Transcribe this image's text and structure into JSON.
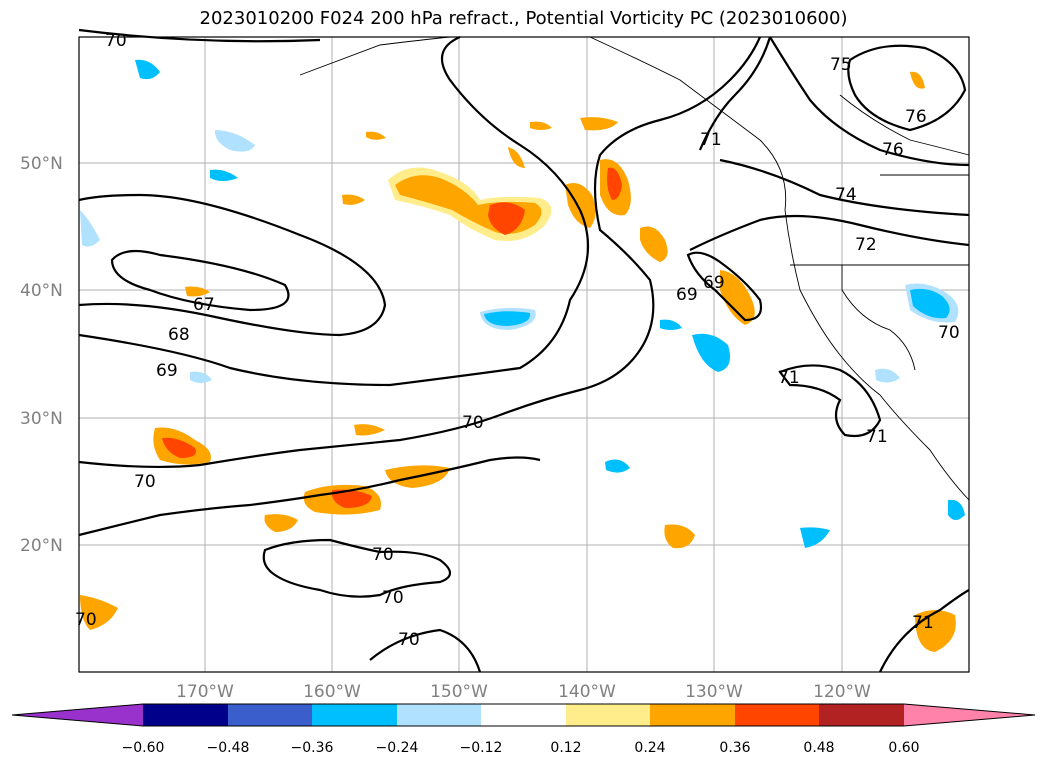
{
  "title": "2023010200 F024 200 hPa refract., Potential Vorticity PC (2023010600)",
  "lat_labels": [
    "50°N",
    "40°N",
    "30°N",
    "20°N"
  ],
  "lon_labels": [
    "170°W",
    "160°W",
    "150°W",
    "140°W",
    "130°W",
    "120°W"
  ],
  "contour_labels": [
    "70",
    "67",
    "68",
    "69",
    "70",
    "70",
    "70",
    "70",
    "70",
    "70",
    "71",
    "71",
    "71",
    "72",
    "74",
    "75",
    "76",
    "76",
    "69",
    "69",
    "70",
    "71"
  ],
  "colorbar": {
    "ticks": [
      "−0.60",
      "−0.48",
      "−0.36",
      "−0.24",
      "−0.12",
      "0.12",
      "0.24",
      "0.36",
      "0.48",
      "0.60"
    ],
    "colors": [
      "#9932cc",
      "#00008b",
      "#3a5fcd",
      "#00bfff",
      "#b0e2ff",
      "#ffffff",
      "#ffec8b",
      "#ffa500",
      "#ff4500",
      "#b22222",
      "#ff82ab"
    ]
  }
}
